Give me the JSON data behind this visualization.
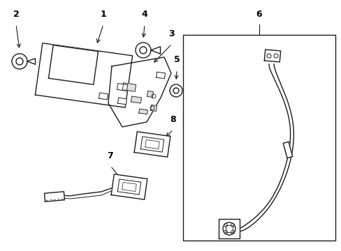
{
  "background_color": "#ffffff",
  "line_color": "#1a1a1a",
  "fig_width": 4.89,
  "fig_height": 3.6,
  "dpi": 100,
  "label_fontsize": 9
}
